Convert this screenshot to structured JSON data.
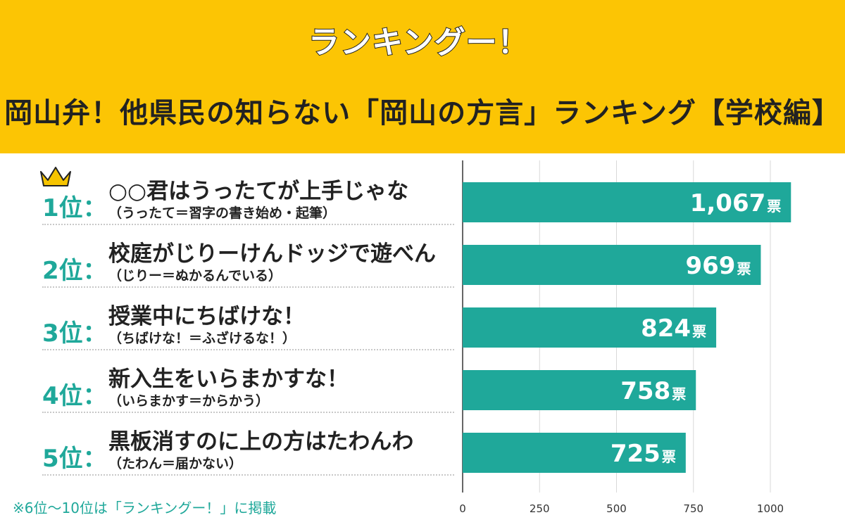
{
  "header": {
    "logo_text": "ランキングー！",
    "title": "岡山弁！他県民の知らない「岡山の方言」ランキング【学校編】"
  },
  "rankings": [
    {
      "rank": "1位：",
      "phrase": "○○君はうったてが上手じゃな",
      "meaning": "（うったて＝習字の書き始め・起筆）"
    },
    {
      "rank": "2位：",
      "phrase": "校庭がじりーけんドッジで遊べん",
      "meaning": "（じりー＝ぬかるんでいる）"
    },
    {
      "rank": "3位：",
      "phrase": "授業中にちばけな！",
      "meaning": "（ちばけな！＝ふざけるな！）"
    },
    {
      "rank": "4位：",
      "phrase": "新入生をいらまかすな！",
      "meaning": "（いらまかす＝からかう）"
    },
    {
      "rank": "5位：",
      "phrase": "黒板消すのに上の方はたわんわ",
      "meaning": "（たわん＝届かない）"
    }
  ],
  "footnote": "※6位〜10位は「ランキングー！」に掲載",
  "colors": {
    "header_bg": "#FCC504",
    "accent": "#1FA89A",
    "crown": "#F6C400"
  },
  "chart_data": {
    "type": "bar",
    "orientation": "horizontal",
    "categories": [
      "1位",
      "2位",
      "3位",
      "4位",
      "5位"
    ],
    "values": [
      1067,
      969,
      824,
      758,
      725
    ],
    "value_labels": [
      "1,067",
      "969",
      "824",
      "758",
      "725"
    ],
    "unit": "票",
    "xlim": [
      0,
      1000
    ],
    "ticks": [
      0,
      250,
      500,
      750,
      1000
    ],
    "grid": true
  }
}
